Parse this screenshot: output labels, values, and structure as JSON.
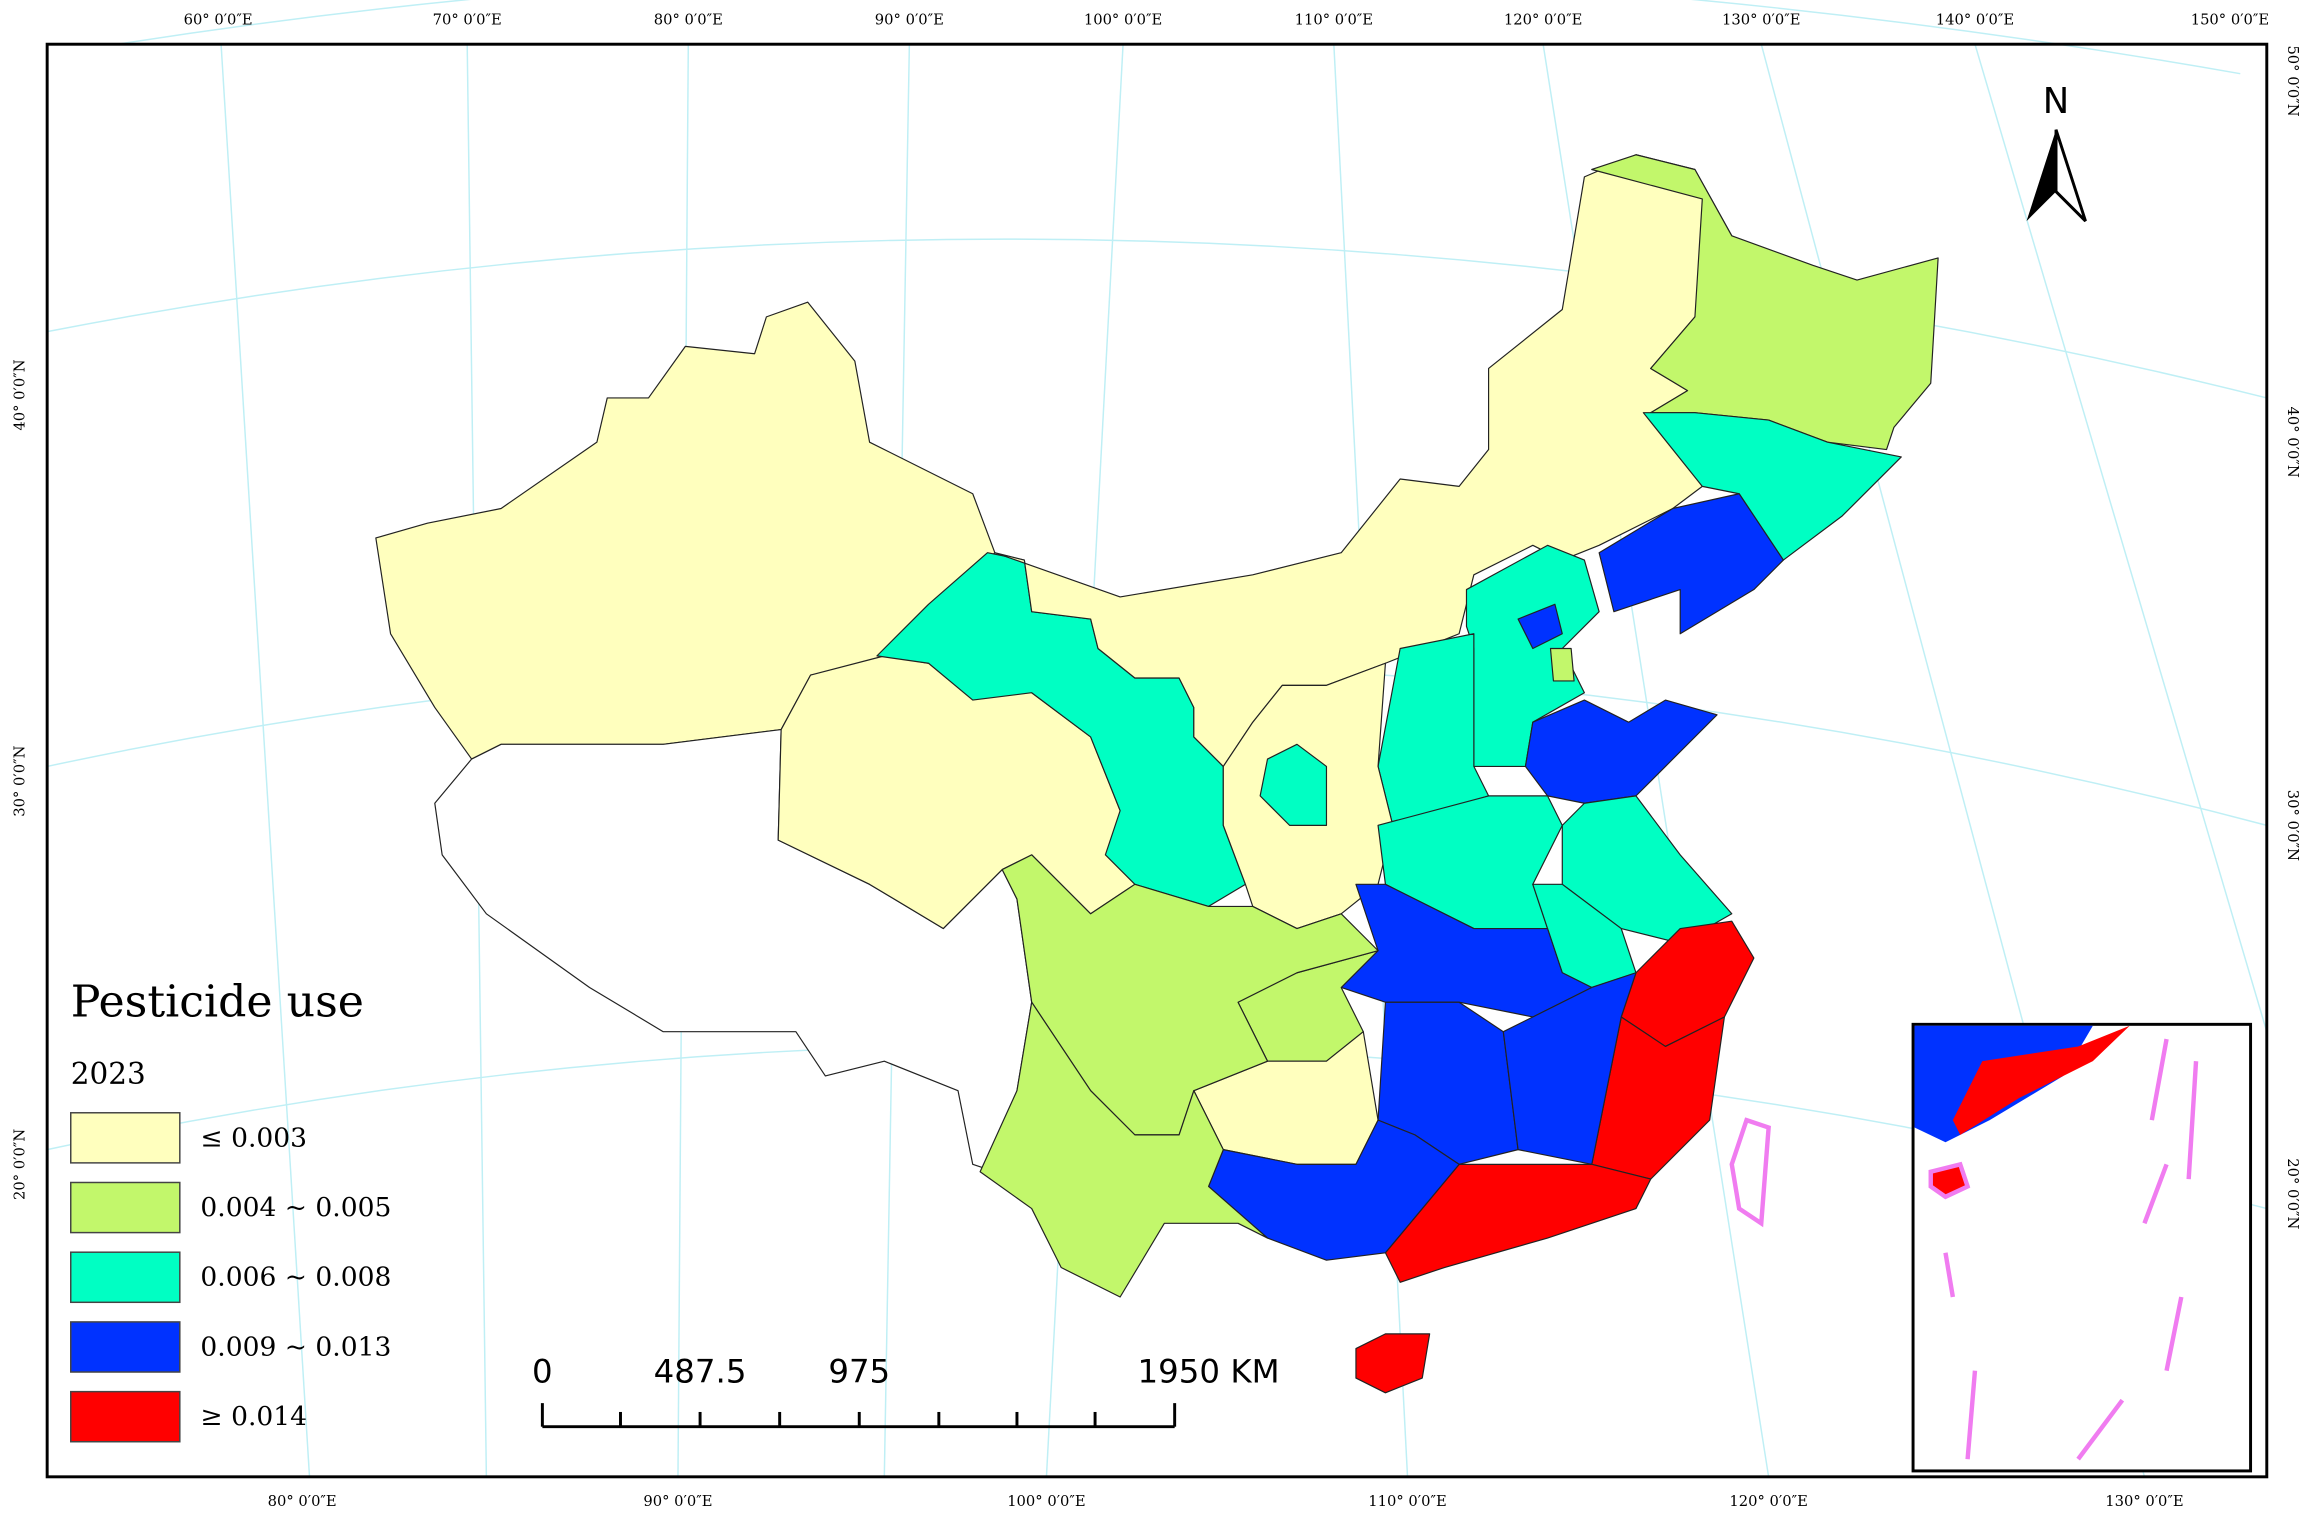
{
  "map": {
    "title": "Pesticide use",
    "year": "2023",
    "north": "N",
    "legend": {
      "items": [
        {
          "label": "≤ 0.003",
          "color": "#ffffbe"
        },
        {
          "label": "0.004 ~ 0.005",
          "color": "#c2f76b"
        },
        {
          "label": "0.006 ~ 0.008",
          "color": "#00ffc3"
        },
        {
          "label": "0.009 ~ 0.013",
          "color": "#0032ff"
        },
        {
          "label": "≥ 0.014",
          "color": "#ff0000"
        }
      ]
    },
    "scale_labels": [
      "0",
      "487.5",
      "975",
      "1950 KM"
    ],
    "top_labels": [
      "60° 0′0″E",
      "70° 0′0″E",
      "80° 0′0″E",
      "90° 0′0″E",
      "100° 0′0″E",
      "110° 0′0″E",
      "120° 0′0″E",
      "130° 0′0″E",
      "140° 0′0″E",
      "150° 0′0″E"
    ],
    "bottom_labels": [
      "80° 0′0″E",
      "90° 0′0″E",
      "100° 0′0″E",
      "110° 0′0″E",
      "120° 0′0″E",
      "130° 0′0″E"
    ],
    "left_labels": [
      "40° 0′0″N",
      "30° 0′0″N",
      "20° 0′0″N"
    ],
    "right_labels": [
      "50° 0′0″N",
      "40° 0′0″N",
      "30° 0′0″N",
      "20° 0′0″N"
    ]
  }
}
